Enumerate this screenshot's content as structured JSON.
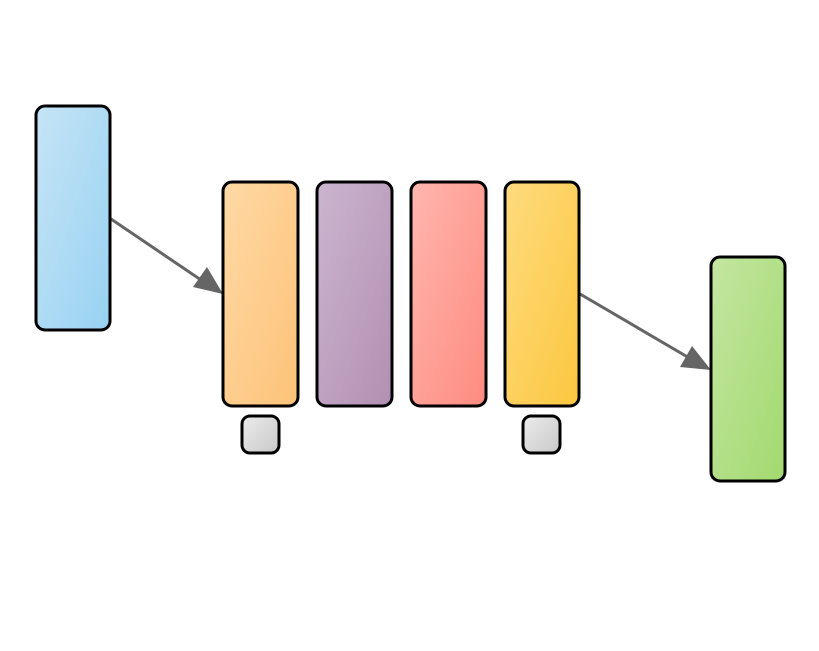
{
  "diagram": {
    "nodes": [
      {
        "id": "input-block",
        "color_top": "#c6e4f6",
        "color_bottom": "#97d2f2"
      },
      {
        "id": "layer-orange",
        "color_top": "#fed9a5",
        "color_bottom": "#fdc278"
      },
      {
        "id": "layer-purple",
        "color_top": "#cbb5cf",
        "color_bottom": "#b28fb2"
      },
      {
        "id": "layer-red",
        "color_top": "#ffb6af",
        "color_bottom": "#fe8b7f"
      },
      {
        "id": "layer-yellow",
        "color_top": "#fedb7e",
        "color_bottom": "#fbc73f"
      },
      {
        "id": "output-block",
        "color_top": "#c3e6a0",
        "color_bottom": "#a2d96f"
      }
    ],
    "small_nodes": [
      {
        "id": "small-node-left",
        "color_top": "#ececec",
        "color_bottom": "#c8c8c8"
      },
      {
        "id": "small-node-right",
        "color_top": "#ececec",
        "color_bottom": "#c8c8c8"
      }
    ],
    "edge_color": "#656565",
    "border_color": "#000000"
  }
}
